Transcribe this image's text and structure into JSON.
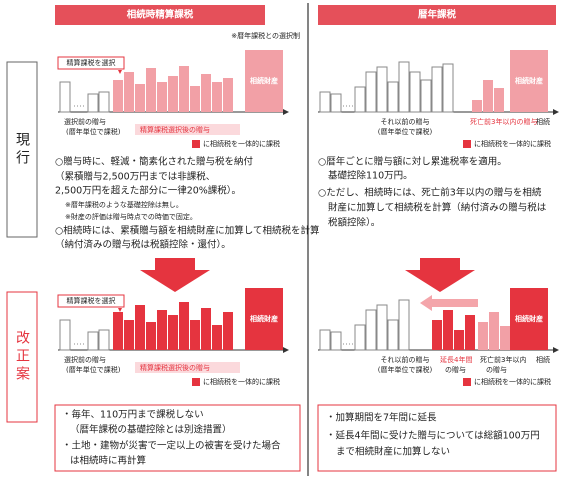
{
  "row_labels": {
    "current": "現行",
    "proposed": "改正案"
  },
  "left": {
    "header": "相続時精算課税",
    "note": "※暦年課税との選択制",
    "current": {
      "select": "精算課税を選択",
      "asset": "相続財産",
      "before": "選択前の贈与",
      "before_note": "(暦年単位で課税)",
      "after": "精算課税選択後の贈与",
      "legend": "に相続税を一体的に課税",
      "lines": [
        "○贈与時に、軽減・簡素化された贈与税を納付",
        "（累積贈与2,500万円までは非課税、",
        "2,500万円を超えた部分に一律20%課税）。",
        "※暦年課税のような基礎控除は無し。",
        "※財産の評価は贈与時点での時価で固定。",
        "○相続時には、累積贈与額を相続財産に加算して相続税を計算",
        "（納付済みの贈与税は税額控除・還付）。"
      ]
    },
    "proposed": {
      "select": "精算課税を選択",
      "asset": "相続財産",
      "before": "選択前の贈与",
      "before_note": "(暦年単位で課税)",
      "after": "精算課税選択後の贈与",
      "legend": "に相続税を一体的に課税",
      "lines": [
        "・毎年、110万円まで課税しない",
        "（暦年課税の基礎控除とは別途措置）",
        "・土地・建物が災害で一定以上の被害を受けた場合",
        "は相続時に再計算"
      ]
    }
  },
  "right": {
    "header": "暦年課税",
    "current": {
      "asset": "相続財産",
      "axis": "相続",
      "before": "それ以前の贈与",
      "before_note": "(暦年単位で課税)",
      "after": "死亡前3年以内の贈与",
      "legend": "に相続税を一体的に課税",
      "lines": [
        "○暦年ごとに贈与額に対し累進税率を適用。",
        "基礎控除110万円。",
        "○ただし、相続時には、死亡前3年以内の贈与を相続",
        "財産に加算して相続税を計算（納付済みの贈与税は",
        "税額控除）。"
      ]
    },
    "proposed": {
      "asset": "相続財産",
      "axis": "相続",
      "before": "それ以前の贈与",
      "before_note": "(暦年単位で課税)",
      "extended": [
        "延長4年間",
        "の贈与"
      ],
      "after": [
        "死亡前3年以内",
        "の贈与"
      ],
      "legend": "に相続税を一体的に課税",
      "lines": [
        "・加算期間を7年間に延長",
        "・延長4年間に受けた贈与については総額100万円",
        "まで相続財産に加算しない"
      ]
    }
  }
}
